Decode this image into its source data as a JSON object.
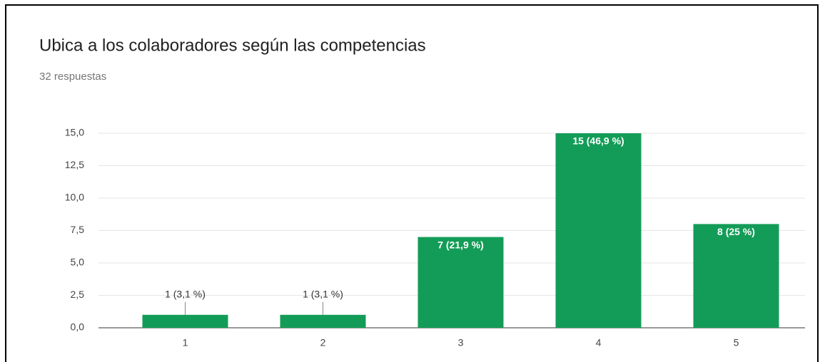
{
  "chart_data": {
    "type": "bar",
    "title": "Ubica a los colaboradores según las competencias",
    "subtitle": "32 respuestas",
    "categories": [
      "1",
      "2",
      "3",
      "4",
      "5"
    ],
    "values": [
      1,
      1,
      7,
      15,
      8
    ],
    "value_labels": [
      "1 (3,1 %)",
      "1 (3,1 %)",
      "7 (21,9 %)",
      "15 (46,9 %)",
      "8 (25 %)"
    ],
    "color": "#139c57",
    "ylim": [
      0,
      15
    ],
    "yticks": [
      {
        "value": 0,
        "label": "0,0"
      },
      {
        "value": 2.5,
        "label": "2,5"
      },
      {
        "value": 5,
        "label": "5,0"
      },
      {
        "value": 7.5,
        "label": "7,5"
      },
      {
        "value": 10,
        "label": "10,0"
      },
      {
        "value": 12.5,
        "label": "12,5"
      },
      {
        "value": 15,
        "label": "15,0"
      }
    ],
    "grid": true
  }
}
